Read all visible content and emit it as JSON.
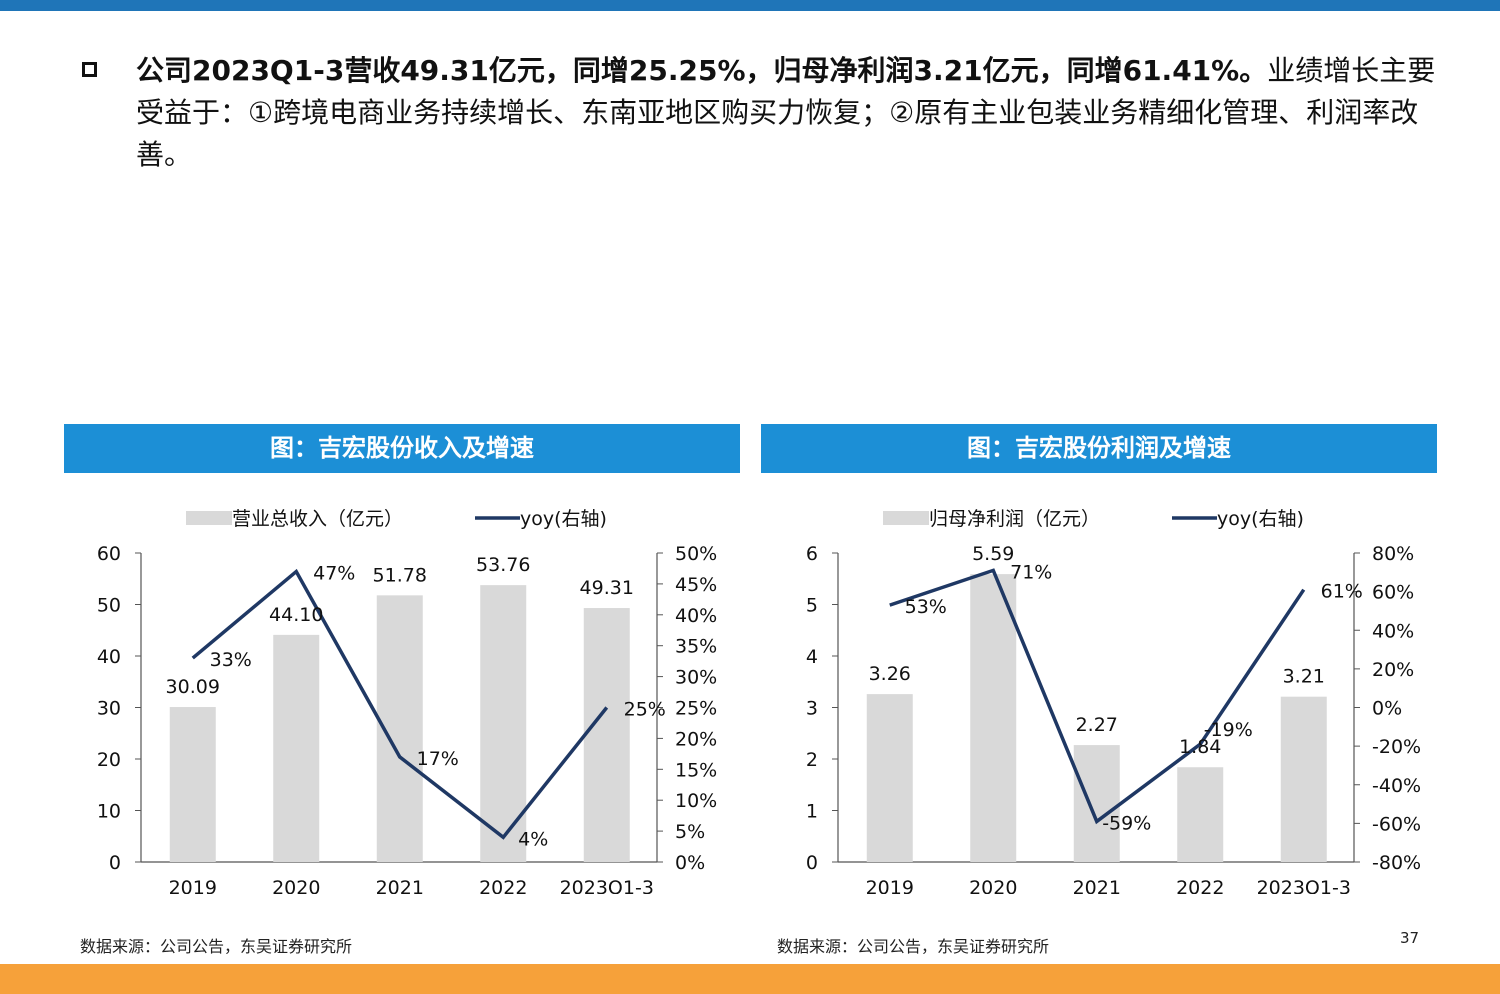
{
  "headline": {
    "bold": "公司2023Q1-3营收49.31亿元，同增25.25%，归母净利润3.21亿元，同增61.41%。",
    "normal": "业绩增长主要受益于：①跨境电商业务持续增长、东南亚地区购买力恢复；②原有主业包装业务精细化管理、利润率改善。"
  },
  "colors": {
    "top_rule": "#1f75b8",
    "header_bg": "#1c8fd6",
    "bar": "#d9d9d9",
    "line": "#1f3864",
    "bottom_band": "#f6a13a"
  },
  "page_number": "37",
  "chart_data": [
    {
      "type": "bar",
      "title": "图：吉宏股份收入及增速",
      "categories": [
        "2019",
        "2020",
        "2021",
        "2022",
        "2023Q1-3"
      ],
      "series": [
        {
          "name": "营业总收入（亿元）",
          "type": "bar",
          "axis": "left",
          "values": [
            30.09,
            44.1,
            51.78,
            53.76,
            49.31
          ],
          "labels": [
            "30.09",
            "44.10",
            "51.78",
            "53.76",
            "49.31"
          ]
        },
        {
          "name": "yoy(右轴)",
          "type": "line",
          "axis": "right",
          "values": [
            33,
            47,
            17,
            4,
            25
          ],
          "labels": [
            "33%",
            "47%",
            "17%",
            "4%",
            "25%"
          ]
        }
      ],
      "ylim": [
        0,
        60
      ],
      "y_ticks": [
        "0",
        "10",
        "20",
        "30",
        "40",
        "50",
        "60"
      ],
      "y2lim": [
        0,
        50
      ],
      "y2_ticks": [
        "0%",
        "5%",
        "10%",
        "15%",
        "20%",
        "25%",
        "30%",
        "35%",
        "40%",
        "45%",
        "50%"
      ],
      "legend": "top",
      "grid": false,
      "source": "数据来源：公司公告，东吴证券研究所"
    },
    {
      "type": "bar",
      "title": "图：吉宏股份利润及增速",
      "categories": [
        "2019",
        "2020",
        "2021",
        "2022",
        "2023Q1-3"
      ],
      "series": [
        {
          "name": "归母净利润（亿元）",
          "type": "bar",
          "axis": "left",
          "values": [
            3.26,
            5.59,
            2.27,
            1.84,
            3.21
          ],
          "labels": [
            "3.26",
            "5.59",
            "2.27",
            "1.84",
            "3.21"
          ]
        },
        {
          "name": "yoy(右轴)",
          "type": "line",
          "axis": "right",
          "values": [
            53,
            71,
            -59,
            -19,
            61
          ],
          "labels": [
            "53%",
            "71%",
            "-59%",
            "-19%",
            "61%"
          ]
        }
      ],
      "ylim": [
        0,
        6
      ],
      "y_ticks": [
        "0",
        "1",
        "2",
        "3",
        "4",
        "5",
        "6"
      ],
      "y2lim": [
        -80,
        80
      ],
      "y2_ticks": [
        "-80%",
        "-60%",
        "-40%",
        "-20%",
        "0%",
        "20%",
        "40%",
        "60%",
        "80%"
      ],
      "legend": "top",
      "grid": false,
      "source": "数据来源：公司公告，东吴证券研究所"
    }
  ]
}
